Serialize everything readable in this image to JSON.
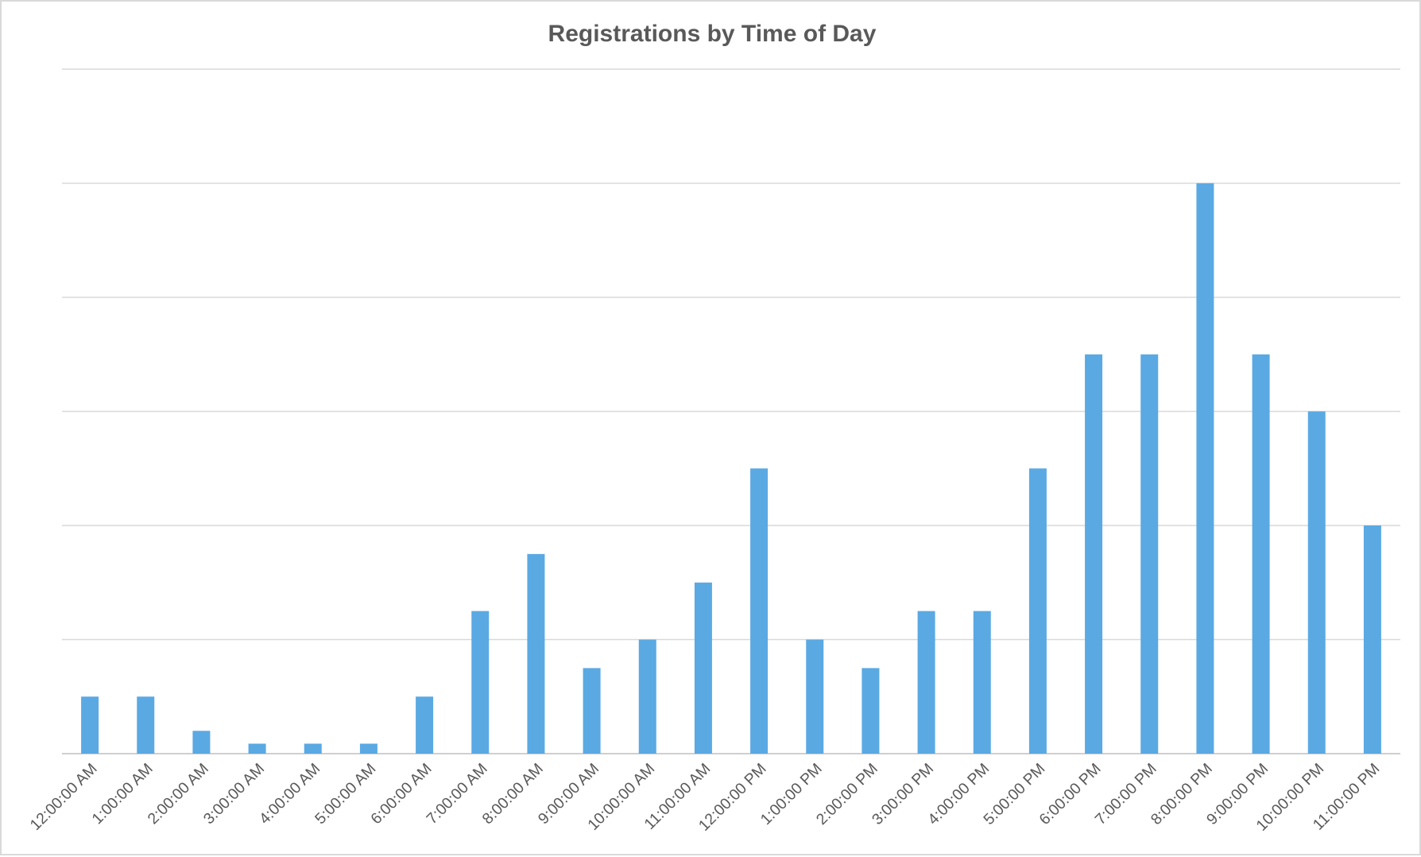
{
  "chart_data": {
    "type": "bar",
    "title": "Registrations by Time of Day",
    "xlabel": "",
    "ylabel": "",
    "categories": [
      "12:00:00 AM",
      "1:00:00 AM",
      "2:00:00 AM",
      "3:00:00 AM",
      "4:00:00 AM",
      "5:00:00 AM",
      "6:00:00 AM",
      "7:00:00 AM",
      "8:00:00 AM",
      "9:00:00 AM",
      "10:00:00 AM",
      "11:00:00 AM",
      "12:00:00 PM",
      "1:00:00 PM",
      "2:00:00 PM",
      "3:00:00 PM",
      "4:00:00 PM",
      "5:00:00 PM",
      "6:00:00 PM",
      "7:00:00 PM",
      "8:00:00 PM",
      "9:00:00 PM",
      "10:00:00 PM",
      "11:00:00 PM"
    ],
    "values": [
      2,
      2,
      0.8,
      0.35,
      0.35,
      0.35,
      2,
      5,
      7,
      3,
      4,
      6,
      10,
      4,
      3,
      5,
      5,
      10,
      14,
      14,
      20,
      14,
      12,
      8
    ],
    "ylim": [
      0,
      24
    ],
    "grid": true,
    "gridlines": [
      0,
      4,
      8,
      12,
      16,
      20,
      24
    ],
    "y_tick_labels_shown": false,
    "legend": "none",
    "bar_color": "#5aa9e3"
  }
}
